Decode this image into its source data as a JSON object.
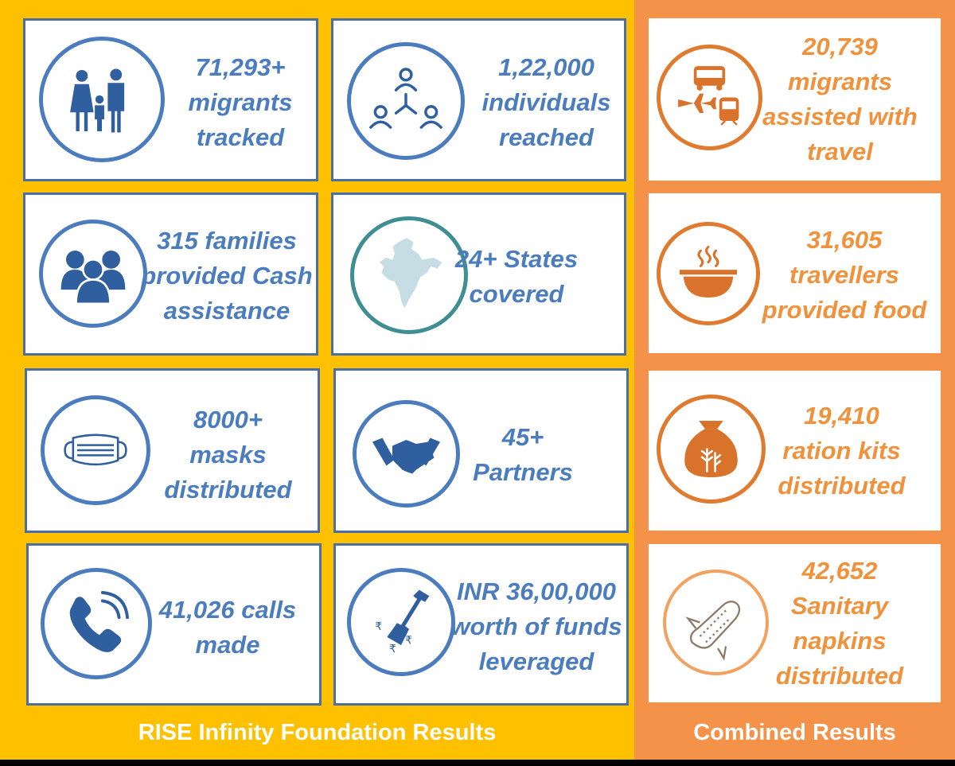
{
  "footer": {
    "left": "RISE Infinity Foundation Results",
    "right": "Combined Results"
  },
  "colors": {
    "left_panel": "#FFC000",
    "right_panel": "#F4924A",
    "blue_text": "#4A7CBE",
    "orange_text": "#F0913C"
  },
  "cards": {
    "migrants_tracked": {
      "icon": "family-icon",
      "lines": [
        "71,293+",
        "migrants",
        "tracked"
      ]
    },
    "individuals_reached": {
      "icon": "network-people-icon",
      "lines": [
        "1,22,000",
        "individuals",
        "reached"
      ]
    },
    "families_cash": {
      "icon": "group-people-icon",
      "lines": [
        "315 families",
        "provided  Cash",
        "assistance"
      ]
    },
    "states_covered": {
      "icon": "india-map-icon",
      "lines": [
        "24+ States",
        "covered"
      ]
    },
    "masks": {
      "icon": "mask-icon",
      "lines": [
        "8000+",
        "masks",
        "distributed"
      ]
    },
    "partners": {
      "icon": "handshake-icon",
      "lines": [
        "45+",
        "Partners"
      ]
    },
    "calls": {
      "icon": "phone-icon",
      "lines": [
        "41,026 calls",
        "made"
      ]
    },
    "funds": {
      "icon": "shovel-rupee-icon",
      "lines": [
        "INR 36,00,000",
        "worth of funds",
        "leveraged"
      ]
    },
    "travel": {
      "icon": "transport-icon",
      "lines": [
        "20,739",
        "migrants",
        "assisted with",
        "travel"
      ]
    },
    "food": {
      "icon": "food-bowl-icon",
      "lines": [
        "31,605",
        "travellers",
        "provided food"
      ]
    },
    "ration": {
      "icon": "ration-sack-icon",
      "lines": [
        "19,410",
        "ration kits",
        "distributed"
      ]
    },
    "sanitary": {
      "icon": "sanitary-napkin-icon",
      "lines": [
        "42,652",
        "Sanitary",
        "napkins",
        "distributed"
      ]
    }
  }
}
